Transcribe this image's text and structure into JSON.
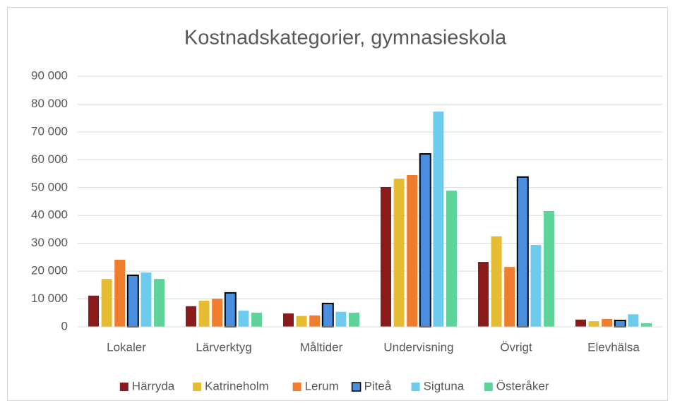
{
  "chart_data": {
    "type": "bar",
    "title": "Kostnadskategorier, gymnasieskola",
    "categories": [
      "Lokaler",
      "Lärverktyg",
      "Måltider",
      "Undervisning",
      "Övrigt",
      "Elevhälsa"
    ],
    "series": [
      {
        "name": "Härryda",
        "color": "#8b1a1a",
        "values": [
          11200,
          7400,
          4800,
          50200,
          23300,
          2600
        ]
      },
      {
        "name": "Katrineholm",
        "color": "#e6bd32",
        "values": [
          17200,
          9400,
          3900,
          53200,
          32500,
          2000
        ]
      },
      {
        "name": "Lerum",
        "color": "#ee7d2d",
        "values": [
          24100,
          10100,
          4100,
          54500,
          21500,
          2800
        ]
      },
      {
        "name": "Piteå",
        "color": "#4a8fdf",
        "edgecolor": "#000000",
        "values": [
          18500,
          12200,
          8400,
          62100,
          53800,
          2300
        ]
      },
      {
        "name": "Sigtuna",
        "color": "#6dcbee",
        "values": [
          19500,
          5800,
          5400,
          77300,
          29400,
          4500
        ]
      },
      {
        "name": "Österåker",
        "color": "#5fd49a",
        "values": [
          17200,
          5100,
          5100,
          48900,
          41600,
          1300
        ]
      }
    ],
    "ylim": [
      0,
      90000
    ],
    "yticks": [
      0,
      {
        "value": 10000,
        "label": "10 000"
      },
      {
        "value": 20000,
        "label": "20 000"
      },
      {
        "value": 30000,
        "label": "30 000"
      },
      {
        "value": 40000,
        "label": "40 000"
      },
      {
        "value": 50000,
        "label": "50 000"
      },
      {
        "value": 60000,
        "label": "60 000"
      },
      {
        "value": 70000,
        "label": "70 000"
      },
      {
        "value": 80000,
        "label": "80 000"
      },
      {
        "value": 90000,
        "label": "90 000"
      }
    ],
    "grid": true,
    "legend": "bottom"
  }
}
